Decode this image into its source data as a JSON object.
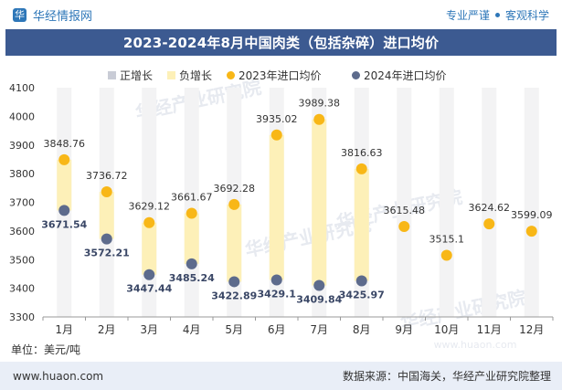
{
  "header": {
    "brand_icon": "华",
    "brand_name": "华经情报网",
    "slogan_left": "专业严谨",
    "slogan_right": "客观科学"
  },
  "title": "2023-2024年8月中国肉类（包括杂碎）进口均价",
  "legend": {
    "items": [
      {
        "label": "正增长",
        "color": "#c9ccd6",
        "shape": "square"
      },
      {
        "label": "负增长",
        "color": "#fdf0b8",
        "shape": "square"
      },
      {
        "label": "2023年进口均价",
        "color": "#f8b717",
        "shape": "circle"
      },
      {
        "label": "2024年进口均价",
        "color": "#5d6b8c",
        "shape": "circle"
      }
    ]
  },
  "unit_label": "单位：美元/吨",
  "watermark": "华经产业研究院",
  "footer": {
    "website": "www.huaon.com",
    "source": "数据来源：中国海关，华经产业研究院整理"
  },
  "colors": {
    "title_bar": "#3c5a91",
    "brand_blue": "#2e77b8",
    "series_2023": "#f8b717",
    "series_2024": "#5d6b8c",
    "positive_growth": "#c9ccd6",
    "negative_growth": "#fdf0b8",
    "footer_bg": "#e9eef7"
  },
  "chart_data": {
    "type": "scatter",
    "categories": [
      "1月",
      "2月",
      "3月",
      "4月",
      "5月",
      "6月",
      "7月",
      "8月",
      "9月",
      "10月",
      "11月",
      "12月"
    ],
    "ylim": [
      3300,
      4100
    ],
    "yticks": [
      3300,
      3400,
      3500,
      3600,
      3700,
      3800,
      3900,
      4000,
      4100
    ],
    "grid": false,
    "legend_position": "top",
    "series": [
      {
        "name": "2023年进口均价",
        "values": [
          3848.76,
          3736.72,
          3629.12,
          3661.67,
          3692.28,
          3935.02,
          3989.38,
          3816.63,
          3615.48,
          3515.1,
          3624.62,
          3599.09
        ],
        "labels": [
          "3848.76",
          "3736.72",
          "3629.12",
          "3661.67",
          "3692.28",
          "3935.02",
          "3989.38",
          "3816.63",
          "3615.48",
          "3515.1",
          "3624.62",
          "3599.09"
        ]
      },
      {
        "name": "2024年进口均价",
        "values": [
          3671.54,
          3572.21,
          3447.44,
          3485.24,
          3422.89,
          3429.1,
          3409.84,
          3425.97,
          null,
          null,
          null,
          null
        ],
        "labels": [
          "3671.54",
          "3572.21",
          "3447.44",
          "3485.24",
          "3422.89",
          "3429.1",
          "3409.84",
          "3425.97",
          null,
          null,
          null,
          null
        ]
      }
    ],
    "band_type": "负增长"
  }
}
